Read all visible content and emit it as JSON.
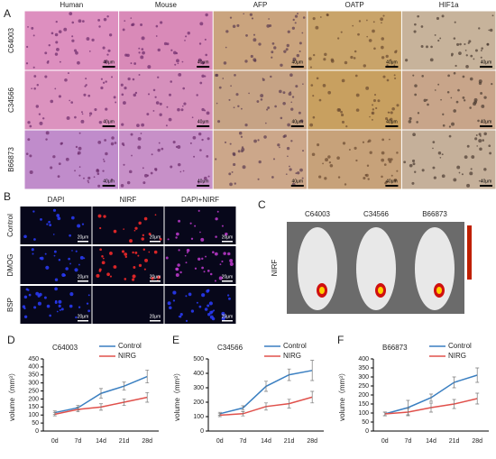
{
  "panels": {
    "A": {
      "label": "A",
      "columns": [
        "Human",
        "Mouse",
        "AFP",
        "OATP",
        "HIF1a"
      ],
      "rows": [
        "C64003",
        "C34566",
        "B66873"
      ],
      "scale_label": "40μm"
    },
    "B": {
      "label": "B",
      "columns": [
        "DAPI",
        "NIRF",
        "DAPI+NIRF"
      ],
      "rows": [
        "Control",
        "DMOG",
        "BSP"
      ],
      "scale_label": "20μm"
    },
    "C": {
      "label": "C",
      "columns": [
        "C64003",
        "C34566",
        "B66873"
      ],
      "row": "NIRF"
    }
  },
  "chart_data": [
    {
      "type": "line",
      "panel": "D",
      "title": "C64003",
      "y_label": "volume（mm³）",
      "categories": [
        "0d",
        "7d",
        "14d",
        "21d",
        "28d"
      ],
      "ylim": [
        0,
        450
      ],
      "yticks": [
        0,
        50,
        100,
        150,
        200,
        250,
        300,
        350,
        400,
        450
      ],
      "series": [
        {
          "name": "Control",
          "color": "#3a7fc1",
          "values": [
            115,
            145,
            235,
            280,
            340
          ],
          "errors": [
            10,
            15,
            30,
            25,
            40
          ]
        },
        {
          "name": "NIRG",
          "color": "#e0504b",
          "values": [
            105,
            135,
            150,
            180,
            210
          ],
          "errors": [
            10,
            15,
            20,
            20,
            30
          ]
        }
      ]
    },
    {
      "type": "line",
      "panel": "E",
      "title": "C34566",
      "y_label": "volume（mm³）",
      "categories": [
        "0d",
        "7d",
        "14d",
        "21d",
        "28d"
      ],
      "ylim": [
        0,
        500
      ],
      "yticks": [
        0,
        100,
        200,
        300,
        400,
        500
      ],
      "series": [
        {
          "name": "Control",
          "color": "#3a7fc1",
          "values": [
            120,
            160,
            310,
            390,
            420
          ],
          "errors": [
            10,
            15,
            35,
            40,
            70
          ]
        },
        {
          "name": "NIRG",
          "color": "#e0504b",
          "values": [
            110,
            120,
            170,
            190,
            235
          ],
          "errors": [
            10,
            15,
            25,
            30,
            40
          ]
        }
      ]
    },
    {
      "type": "line",
      "panel": "F",
      "title": "B66873",
      "y_label": "volume（mm³）",
      "categories": [
        "0d",
        "7d",
        "14d",
        "21d",
        "28d"
      ],
      "ylim": [
        0,
        400
      ],
      "yticks": [
        0,
        50,
        100,
        150,
        200,
        250,
        300,
        350,
        400
      ],
      "series": [
        {
          "name": "Control",
          "color": "#3a7fc1",
          "values": [
            95,
            130,
            185,
            270,
            310
          ],
          "errors": [
            10,
            40,
            20,
            30,
            40
          ]
        },
        {
          "name": "NIRG",
          "color": "#e0504b",
          "values": [
            95,
            105,
            130,
            150,
            180
          ],
          "errors": [
            10,
            20,
            25,
            25,
            30
          ]
        }
      ]
    }
  ]
}
